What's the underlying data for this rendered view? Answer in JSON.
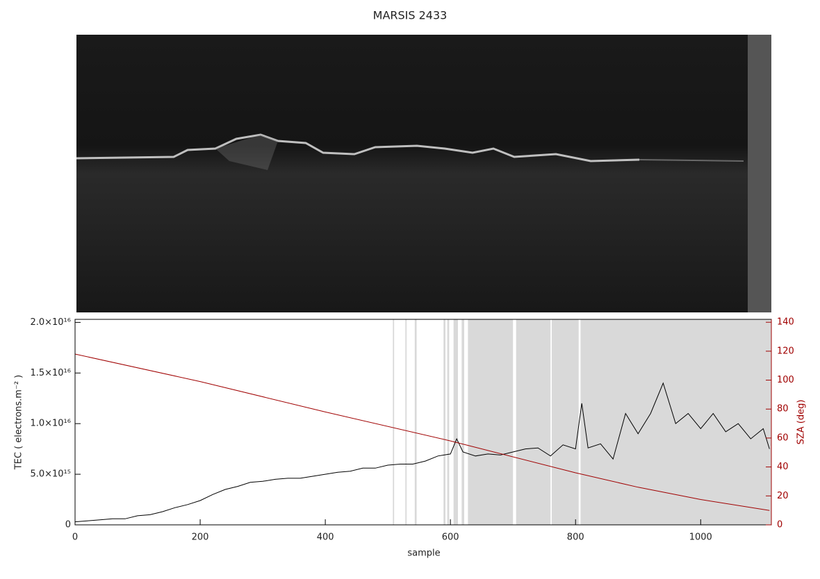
{
  "chart_data": {
    "type": "line",
    "title": "MARSIS 2433",
    "xlabel": "sample",
    "ylabel": "TEC ( electrons.m⁻² )",
    "y2label": "SZA (deg)",
    "xlim": [
      0,
      1113
    ],
    "xticks": [
      0,
      200,
      400,
      600,
      800,
      1000
    ],
    "ylim": [
      0,
      2.03e+16
    ],
    "yticks": [
      0,
      {
        "value": 5000000000000000.0,
        "label": "5.0×10¹⁵"
      },
      {
        "value": 1e+16,
        "label": "1.0×10¹⁶"
      },
      {
        "value": 1.5e+16,
        "label": "1.5×10¹⁶"
      },
      {
        "value": 2e+16,
        "label": "2.0×10¹⁶"
      }
    ],
    "y2lim": [
      0,
      142
    ],
    "y2ticks": [
      0,
      20,
      40,
      60,
      80,
      100,
      120,
      140
    ],
    "shade_color": "#d9d9d9",
    "shaded_spans": [
      [
        508,
        510
      ],
      [
        528,
        530
      ],
      [
        543,
        546
      ],
      [
        589,
        592
      ],
      [
        595,
        598
      ],
      [
        605,
        612
      ],
      [
        618,
        622
      ],
      [
        628,
        700
      ],
      [
        705,
        760
      ],
      [
        762,
        805
      ],
      [
        808,
        1113
      ]
    ],
    "series": [
      {
        "name": "TEC",
        "color": "#000000",
        "x": [
          0,
          20,
          40,
          60,
          80,
          100,
          120,
          140,
          160,
          180,
          200,
          220,
          240,
          260,
          280,
          300,
          320,
          340,
          360,
          380,
          400,
          420,
          440,
          460,
          480,
          500,
          520,
          540,
          560,
          580,
          600,
          610,
          620,
          640,
          660,
          680,
          700,
          720,
          740,
          760,
          780,
          800,
          810,
          820,
          840,
          860,
          880,
          900,
          920,
          940,
          960,
          980,
          1000,
          1020,
          1040,
          1060,
          1080,
          1100,
          1110
        ],
        "values": [
          300000000000000.0,
          400000000000000.0,
          500000000000000.0,
          600000000000000.0,
          600000000000000.0,
          900000000000000.0,
          1000000000000000.0,
          1300000000000000.0,
          1700000000000000.0,
          2000000000000000.0,
          2400000000000000.0,
          3000000000000000.0,
          3500000000000000.0,
          3800000000000000.0,
          4200000000000000.0,
          4300000000000000.0,
          4500000000000000.0,
          4600000000000000.0,
          4600000000000000.0,
          4800000000000000.0,
          5000000000000000.0,
          5200000000000000.0,
          5300000000000000.0,
          5600000000000000.0,
          5600000000000000.0,
          5900000000000000.0,
          6000000000000000.0,
          6000000000000000.0,
          6300000000000000.0,
          6800000000000000.0,
          7000000000000000.0,
          8500000000000000.0,
          7200000000000000.0,
          6800000000000000.0,
          7000000000000000.0,
          6900000000000000.0,
          7200000000000000.0,
          7500000000000000.0,
          7600000000000000.0,
          6800000000000000.0,
          7900000000000000.0,
          7500000000000000.0,
          1.2e+16,
          7600000000000000.0,
          8000000000000000.0,
          6500000000000000.0,
          1.1e+16,
          9000000000000000.0,
          1.1e+16,
          1.4e+16,
          1e+16,
          1.1e+16,
          9500000000000000.0,
          1.1e+16,
          9200000000000000.0,
          1e+16,
          8500000000000000.0,
          9500000000000000.0,
          7500000000000000.0
        ]
      },
      {
        "name": "SZA",
        "color": "#a00000",
        "axis": "y2",
        "x": [
          0,
          200,
          400,
          600,
          800,
          900,
          1000,
          1110
        ],
        "values": [
          118,
          99,
          78,
          58,
          36,
          26,
          17.5,
          10
        ]
      }
    ]
  }
}
